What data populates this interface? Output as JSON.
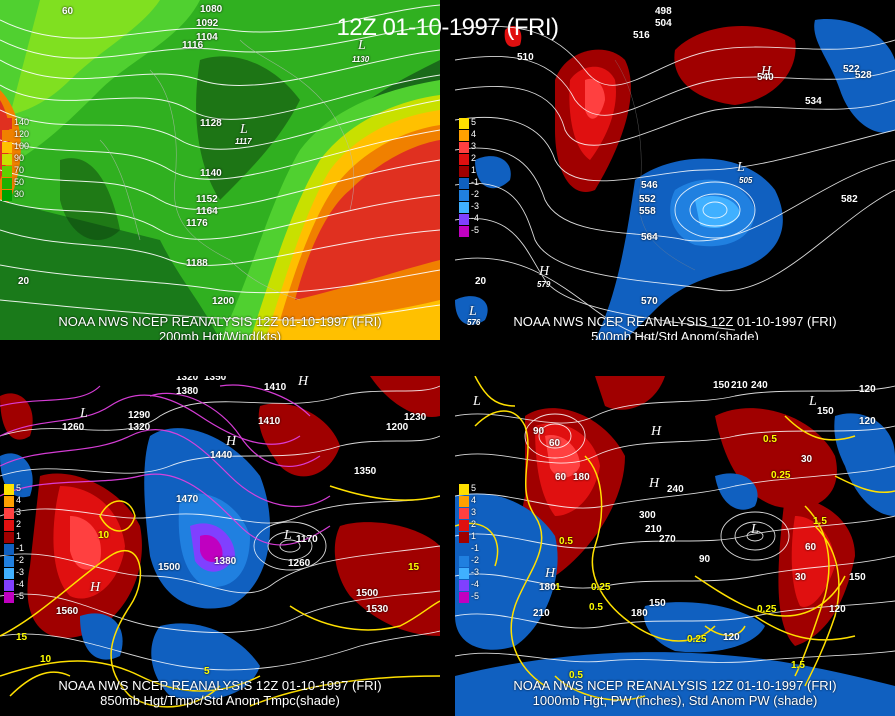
{
  "title": "12Z 01-10-1997 (FRI)",
  "panels": [
    {
      "id": "p1",
      "line1": "NOAA NWS NCEP REANALYSIS 12Z 01-10-1997 (FRI)",
      "line2": "200mb Hgt/Wind(kts)"
    },
    {
      "id": "p2",
      "line1": "NOAA NWS NCEP REANALYSIS 12Z 01-10-1997 (FRI)",
      "line2": "500mb Hgt/Std Anom(shade)"
    },
    {
      "id": "p3",
      "line1": "NOAA NWS NCEP REANALYSIS 12Z 01-10-1997 (FRI)",
      "line2": "850mb Hgt/Tmpc/Std Anom Tmpc(shade)"
    },
    {
      "id": "p4",
      "line1": "NOAA NWS NCEP REANALYSIS 12Z 01-10-1997 (FRI)",
      "line2": "1000mb Hgt, PW (inches), Std Anom PW (shade)"
    }
  ],
  "wind_legend": {
    "labels": [
      "140",
      "120",
      "100",
      "90",
      "70",
      "50",
      "30"
    ],
    "colors": [
      "#e03020",
      "#f08000",
      "#ffc000",
      "#c8e000",
      "#60d000",
      "#20b000",
      "#00a000"
    ]
  },
  "anom_legend": {
    "labels": [
      "5",
      "4",
      "3",
      "2",
      "1",
      "-1",
      "-2",
      "-3",
      "-4",
      "-5"
    ],
    "colors": [
      "#ffe000",
      "#ffa000",
      "#ff4040",
      "#e01010",
      "#a00000",
      "#1060c0",
      "#2080e0",
      "#40b0ff",
      "#8040ff",
      "#c000c0"
    ]
  },
  "p1_labels": {
    "l60": "60",
    "l1080": "1080",
    "l1092": "1092",
    "l1104": "1104",
    "l1116": "1116",
    "l1130": "1130",
    "l1128": "1128",
    "l1117": "1117",
    "l1140": "1140",
    "l1152": "1152",
    "l1164": "1164",
    "l1176": "1176",
    "l1188": "1188",
    "l1200": "1200",
    "l20": "20",
    "L": "L"
  },
  "p2_labels": {
    "l498": "498",
    "l504": "504",
    "l516": "516",
    "l510": "510",
    "l528": "528",
    "l522": "522",
    "l540": "540",
    "l534": "534",
    "l582": "582",
    "l546": "546",
    "l552": "552",
    "l558": "558",
    "l564": "564",
    "l570": "570",
    "l579": "579",
    "l576": "576",
    "l505": "505",
    "l20": "20",
    "H": "H",
    "L": "L"
  },
  "p3_labels": {
    "l1320": "1320",
    "l1380": "1380",
    "l1350": "1350",
    "l1410": "1410",
    "l1290": "1290",
    "l1230": "1230",
    "l1260": "1260",
    "l1440": "1440",
    "l1470": "1470",
    "l1500": "1500",
    "l1530": "1530",
    "l1560": "1560",
    "l1170": "1170",
    "l1200": "1200",
    "t10": "10",
    "t5": "5",
    "t15": "15",
    "H": "H",
    "L": "L"
  },
  "p4_labels": {
    "l150": "150",
    "l210": "210",
    "l240": "240",
    "l120": "120",
    "l90": "90",
    "l60": "60",
    "l30": "30",
    "l270": "270",
    "l300": "300",
    "l180": "180",
    "p05": "0.5",
    "p025": "0.25",
    "p1": "1",
    "p15": "1.5",
    "H": "H",
    "L": "L"
  }
}
